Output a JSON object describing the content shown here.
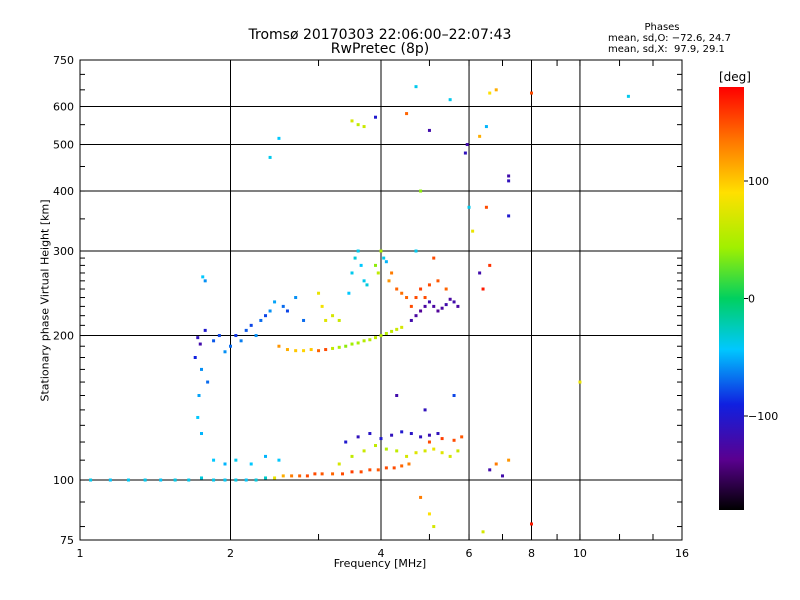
{
  "header": {
    "title": "Tromsø 20170303 22:06:00–22:07:43",
    "subtitle": "RwPretec (8p)"
  },
  "phase_info": {
    "heading": "Phases",
    "line_o": "mean, sd,O: −72.6, 24.7",
    "line_x": "mean, sd,X:  97.9, 29.1"
  },
  "colorbar": {
    "unit_label": "[deg]",
    "ticks": [
      {
        "value": 100,
        "label": "100"
      },
      {
        "value": 0,
        "label": "0"
      },
      {
        "value": -100,
        "label": "−100"
      }
    ],
    "range": [
      -180,
      180
    ]
  },
  "chart_data": {
    "type": "scatter",
    "title": "Tromsø 20170303 22:06:00–22:07:43",
    "subtitle": "RwPretec (8p)",
    "xlabel": "Frequency [MHz]",
    "ylabel": "Stationary phase Virtual Height [km]",
    "x_scale": "log",
    "y_scale": "log",
    "xlim": [
      1,
      16
    ],
    "ylim": [
      75,
      750
    ],
    "grid": true,
    "x_ticks": [
      {
        "value": 1,
        "label": "1"
      },
      {
        "value": 2,
        "label": "2"
      },
      {
        "value": 4,
        "label": "4"
      },
      {
        "value": 6,
        "label": "6"
      },
      {
        "value": 8,
        "label": "8"
      },
      {
        "value": 10,
        "label": "10"
      },
      {
        "value": 16,
        "label": "16"
      }
    ],
    "y_ticks": [
      {
        "value": 75,
        "label": "75"
      },
      {
        "value": 100,
        "label": "100"
      },
      {
        "value": 200,
        "label": "200"
      },
      {
        "value": 300,
        "label": "300"
      },
      {
        "value": 400,
        "label": "400"
      },
      {
        "value": 500,
        "label": "500"
      },
      {
        "value": 600,
        "label": "600"
      },
      {
        "value": 750,
        "label": "750"
      }
    ],
    "series": [
      {
        "color_by": "phase_deg",
        "points": [
          [
            1.05,
            100,
            -40
          ],
          [
            1.15,
            100,
            -45
          ],
          [
            1.25,
            100,
            -42
          ],
          [
            1.35,
            100,
            -40
          ],
          [
            1.45,
            100,
            -44
          ],
          [
            1.55,
            100,
            -38
          ],
          [
            1.65,
            100,
            -40
          ],
          [
            1.75,
            101,
            -35
          ],
          [
            1.85,
            100,
            -40
          ],
          [
            1.95,
            100,
            -42
          ],
          [
            2.05,
            100,
            -38
          ],
          [
            2.15,
            100,
            -44
          ],
          [
            2.25,
            100,
            -36
          ],
          [
            2.35,
            101,
            -30
          ],
          [
            2.45,
            101,
            80
          ],
          [
            2.55,
            102,
            110
          ],
          [
            2.65,
            102,
            130
          ],
          [
            2.75,
            102,
            140
          ],
          [
            2.85,
            102,
            150
          ],
          [
            2.95,
            103,
            150
          ],
          [
            3.05,
            103,
            145
          ],
          [
            3.2,
            103,
            140
          ],
          [
            3.35,
            103,
            150
          ],
          [
            3.5,
            104,
            155
          ],
          [
            3.65,
            104,
            150
          ],
          [
            3.8,
            105,
            150
          ],
          [
            3.95,
            105,
            145
          ],
          [
            4.1,
            106,
            150
          ],
          [
            4.25,
            106,
            150
          ],
          [
            4.4,
            107,
            140
          ],
          [
            4.55,
            108,
            130
          ],
          [
            1.72,
            198,
            -110
          ],
          [
            1.74,
            192,
            -120
          ],
          [
            1.78,
            205,
            -100
          ],
          [
            1.7,
            180,
            -90
          ],
          [
            1.75,
            170,
            -60
          ],
          [
            1.8,
            160,
            -70
          ],
          [
            1.73,
            150,
            -55
          ],
          [
            1.72,
            135,
            -45
          ],
          [
            1.75,
            125,
            -50
          ],
          [
            1.76,
            265,
            -45
          ],
          [
            1.78,
            260,
            -60
          ],
          [
            1.85,
            195,
            -75
          ],
          [
            1.9,
            200,
            -80
          ],
          [
            1.95,
            185,
            -60
          ],
          [
            2.0,
            190,
            -70
          ],
          [
            2.05,
            200,
            -85
          ],
          [
            2.1,
            195,
            -65
          ],
          [
            2.15,
            205,
            -75
          ],
          [
            2.2,
            210,
            -80
          ],
          [
            2.25,
            200,
            -60
          ],
          [
            2.3,
            215,
            -70
          ],
          [
            2.35,
            220,
            -80
          ],
          [
            2.4,
            225,
            -60
          ],
          [
            2.45,
            235,
            -55
          ],
          [
            2.55,
            230,
            -70
          ],
          [
            2.6,
            225,
            -80
          ],
          [
            2.7,
            240,
            -60
          ],
          [
            2.8,
            215,
            -70
          ],
          [
            2.5,
            190,
            120
          ],
          [
            2.6,
            187,
            110
          ],
          [
            2.7,
            186,
            100
          ],
          [
            2.8,
            186,
            95
          ],
          [
            2.9,
            187,
            100
          ],
          [
            3.0,
            186,
            140
          ],
          [
            3.1,
            187,
            150
          ],
          [
            3.2,
            188,
            60
          ],
          [
            3.3,
            189,
            50
          ],
          [
            3.4,
            190,
            40
          ],
          [
            3.5,
            192,
            45
          ],
          [
            3.6,
            193,
            50
          ],
          [
            3.7,
            195,
            55
          ],
          [
            3.8,
            196,
            55
          ],
          [
            3.9,
            198,
            60
          ],
          [
            4.0,
            200,
            55
          ],
          [
            4.1,
            202,
            55
          ],
          [
            4.2,
            204,
            60
          ],
          [
            4.3,
            206,
            65
          ],
          [
            4.4,
            208,
            70
          ],
          [
            3.0,
            245,
            80
          ],
          [
            3.05,
            230,
            85
          ],
          [
            3.1,
            215,
            75
          ],
          [
            3.2,
            220,
            70
          ],
          [
            3.3,
            215,
            65
          ],
          [
            3.45,
            245,
            -45
          ],
          [
            3.5,
            270,
            -40
          ],
          [
            3.55,
            290,
            -35
          ],
          [
            3.6,
            300,
            -40
          ],
          [
            3.65,
            280,
            -45
          ],
          [
            3.7,
            260,
            -40
          ],
          [
            3.75,
            255,
            -35
          ],
          [
            3.9,
            280,
            40
          ],
          [
            3.95,
            270,
            60
          ],
          [
            4.0,
            300,
            50
          ],
          [
            4.05,
            290,
            -40
          ],
          [
            4.1,
            285,
            -50
          ],
          [
            4.15,
            260,
            120
          ],
          [
            4.2,
            270,
            130
          ],
          [
            4.3,
            250,
            140
          ],
          [
            4.4,
            245,
            135
          ],
          [
            4.5,
            240,
            140
          ],
          [
            4.6,
            230,
            150
          ],
          [
            4.7,
            240,
            150
          ],
          [
            4.8,
            250,
            155
          ],
          [
            4.9,
            240,
            150
          ],
          [
            4.6,
            215,
            -120
          ],
          [
            4.7,
            220,
            -125
          ],
          [
            4.8,
            225,
            -130
          ],
          [
            4.9,
            230,
            -125
          ],
          [
            5.0,
            235,
            -120
          ],
          [
            5.1,
            230,
            -125
          ],
          [
            5.2,
            225,
            -130
          ],
          [
            5.3,
            228,
            -125
          ],
          [
            5.4,
            232,
            -120
          ],
          [
            5.5,
            238,
            -125
          ],
          [
            5.6,
            235,
            -120
          ],
          [
            5.7,
            230,
            -125
          ],
          [
            5.0,
            255,
            150
          ],
          [
            5.2,
            260,
            145
          ],
          [
            5.4,
            250,
            140
          ],
          [
            1.85,
            110,
            -45
          ],
          [
            1.95,
            108,
            -50
          ],
          [
            2.05,
            110,
            -40
          ],
          [
            2.2,
            108,
            -45
          ],
          [
            2.35,
            112,
            -50
          ],
          [
            2.5,
            110,
            -45
          ],
          [
            3.3,
            108,
            70
          ],
          [
            3.5,
            112,
            60
          ],
          [
            3.7,
            115,
            65
          ],
          [
            3.9,
            118,
            60
          ],
          [
            4.1,
            116,
            55
          ],
          [
            4.3,
            115,
            60
          ],
          [
            4.5,
            112,
            70
          ],
          [
            4.7,
            114,
            75
          ],
          [
            4.9,
            115,
            70
          ],
          [
            5.1,
            116,
            80
          ],
          [
            5.3,
            114,
            75
          ],
          [
            5.5,
            112,
            70
          ],
          [
            5.7,
            115,
            65
          ],
          [
            3.4,
            120,
            -100
          ],
          [
            3.6,
            123,
            -110
          ],
          [
            3.8,
            125,
            -105
          ],
          [
            4.0,
            122,
            -100
          ],
          [
            4.2,
            124,
            -110
          ],
          [
            4.4,
            126,
            -100
          ],
          [
            4.6,
            125,
            -105
          ],
          [
            4.8,
            123,
            -110
          ],
          [
            5.0,
            124,
            -115
          ],
          [
            5.2,
            125,
            -110
          ],
          [
            5.0,
            120,
            150
          ],
          [
            5.3,
            122,
            155
          ],
          [
            5.6,
            121,
            150
          ],
          [
            5.8,
            123,
            145
          ],
          [
            2.4,
            470,
            -40
          ],
          [
            2.5,
            515,
            -45
          ],
          [
            3.5,
            560,
            70
          ],
          [
            3.6,
            550,
            60
          ],
          [
            3.7,
            545,
            65
          ],
          [
            3.9,
            570,
            -100
          ],
          [
            4.5,
            580,
            140
          ],
          [
            4.7,
            660,
            -40
          ],
          [
            5.0,
            535,
            -120
          ],
          [
            5.5,
            620,
            -40
          ],
          [
            6.6,
            640,
            90
          ],
          [
            6.8,
            650,
            110
          ],
          [
            8.0,
            640,
            150
          ],
          [
            7.2,
            430,
            -120
          ],
          [
            7.2,
            420,
            -110
          ],
          [
            7.2,
            355,
            -100
          ],
          [
            6.5,
            370,
            150
          ],
          [
            6.6,
            280,
            160
          ],
          [
            6.4,
            250,
            170
          ],
          [
            6.3,
            270,
            -120
          ],
          [
            6.1,
            330,
            80
          ],
          [
            6.0,
            370,
            -40
          ],
          [
            5.95,
            500,
            -120
          ],
          [
            5.9,
            480,
            -110
          ],
          [
            6.5,
            545,
            -50
          ],
          [
            6.3,
            520,
            110
          ],
          [
            4.8,
            400,
            40
          ],
          [
            5.1,
            290,
            150
          ],
          [
            4.7,
            300,
            -40
          ],
          [
            6.6,
            105,
            -120
          ],
          [
            6.8,
            108,
            130
          ],
          [
            7.0,
            102,
            -120
          ],
          [
            7.2,
            110,
            120
          ],
          [
            4.8,
            92,
            130
          ],
          [
            5.0,
            85,
            90
          ],
          [
            5.1,
            80,
            70
          ],
          [
            6.4,
            78,
            70
          ],
          [
            8.0,
            81,
            170
          ],
          [
            10.0,
            160,
            80
          ],
          [
            12.5,
            630,
            -40
          ],
          [
            4.3,
            150,
            -120
          ],
          [
            4.9,
            140,
            -110
          ],
          [
            5.6,
            150,
            -80
          ]
        ]
      }
    ]
  }
}
